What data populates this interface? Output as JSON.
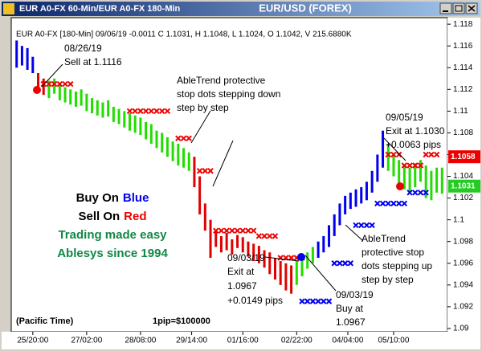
{
  "window": {
    "title": "EUR A0-FX 60-Min/EUR A0-FX 180-Min",
    "symbol": "EUR/USD (FOREX)"
  },
  "chart_data": {
    "type": "range_bar",
    "info": "EUR A0-FX [180-Min] 09/06/19 -0.0011 C 1.1031, H 1.1048, L 1.1024, O 1.1042, V 215.6880K",
    "xlim": [
      -1,
      80
    ],
    "xticks": [
      {
        "value": 3,
        "label": "25/20:00"
      },
      {
        "value": 13,
        "label": "27/02:00"
      },
      {
        "value": 23,
        "label": "28/08:00"
      },
      {
        "value": 32.5,
        "label": "29/14:00"
      },
      {
        "value": 42,
        "label": "01/16:00"
      },
      {
        "value": 52,
        "label": "02/22:00"
      },
      {
        "value": 61.5,
        "label": "04/04:00"
      },
      {
        "value": 70,
        "label": "05/10:00"
      }
    ],
    "ylim": [
      1.0897,
      1.1186
    ],
    "yticks": [
      1.09,
      1.092,
      1.094,
      1.096,
      1.098,
      1.1,
      1.102,
      1.104,
      1.106,
      1.108,
      1.11,
      1.112,
      1.114,
      1.116,
      1.118
    ],
    "high": [
      1.1165,
      1.116,
      1.1158,
      1.115,
      1.1135,
      1.113,
      1.1128,
      1.113,
      1.1125,
      1.1122,
      1.112,
      1.1118,
      1.112,
      1.1116,
      1.1112,
      1.111,
      1.1108,
      1.111,
      1.1104,
      1.1102,
      1.11,
      1.1098,
      1.1096,
      1.1094,
      1.109,
      1.1088,
      1.1082,
      1.108,
      1.1076,
      1.1072,
      1.107,
      1.1066,
      1.1062,
      1.1058,
      1.104,
      1.1015,
      1.1,
      1.099,
      1.0985,
      1.0988,
      1.0982,
      1.0986,
      1.0984,
      1.098,
      1.0978,
      1.0976,
      1.0972,
      1.097,
      1.0965,
      1.0962,
      1.096,
      1.0958,
      1.0962,
      1.0966,
      1.097,
      1.0975,
      1.098,
      1.0985,
      1.0995,
      1.1005,
      1.1015,
      1.1022,
      1.1025,
      1.1028,
      1.103,
      1.1035,
      1.1045,
      1.106,
      1.1082,
      1.107,
      1.106,
      1.1055,
      1.105,
      1.1048,
      1.1052,
      1.1055,
      1.105,
      1.1045,
      1.1048,
      1.1048
    ],
    "low": [
      1.114,
      1.1142,
      1.1138,
      1.1135,
      1.1118,
      1.1115,
      1.1112,
      1.1116,
      1.111,
      1.1108,
      1.1106,
      1.1104,
      1.1105,
      1.11,
      1.1098,
      1.1096,
      1.1094,
      1.1095,
      1.109,
      1.1088,
      1.1085,
      1.1082,
      1.108,
      1.1078,
      1.1074,
      1.107,
      1.1066,
      1.1062,
      1.1058,
      1.1054,
      1.105,
      1.1048,
      1.1045,
      1.103,
      1.1005,
      1.099,
      1.0965,
      1.0975,
      1.097,
      1.0972,
      1.0968,
      1.0974,
      1.097,
      1.0966,
      1.0962,
      1.096,
      1.0956,
      1.095,
      1.0945,
      1.094,
      1.0935,
      1.0932,
      1.094,
      1.0948,
      1.0955,
      1.096,
      1.0965,
      1.097,
      1.0975,
      1.0985,
      1.0995,
      1.1005,
      1.101,
      1.1012,
      1.1015,
      1.1018,
      1.1025,
      1.1035,
      1.1048,
      1.1045,
      1.104,
      1.103,
      1.1028,
      1.1025,
      1.103,
      1.1035,
      1.102,
      1.1018,
      1.1025,
      1.1024
    ],
    "bar_colors": [
      "#0000ee",
      "#0000ee",
      "#0000ee",
      "#0000ee",
      "#e00000",
      "#e00000",
      "#22dd00",
      "#22dd00",
      "#22dd00",
      "#22dd00",
      "#22dd00",
      "#22dd00",
      "#22dd00",
      "#22dd00",
      "#22dd00",
      "#22dd00",
      "#22dd00",
      "#22dd00",
      "#22dd00",
      "#22dd00",
      "#22dd00",
      "#22dd00",
      "#22dd00",
      "#22dd00",
      "#22dd00",
      "#22dd00",
      "#22dd00",
      "#22dd00",
      "#22dd00",
      "#22dd00",
      "#22dd00",
      "#22dd00",
      "#22dd00",
      "#e00000",
      "#e00000",
      "#e00000",
      "#e00000",
      "#e00000",
      "#e00000",
      "#e00000",
      "#e00000",
      "#e00000",
      "#e00000",
      "#e00000",
      "#e00000",
      "#e00000",
      "#e00000",
      "#e00000",
      "#e00000",
      "#e00000",
      "#e00000",
      "#e00000",
      "#22dd00",
      "#22dd00",
      "#22dd00",
      "#22dd00",
      "#0000ee",
      "#0000ee",
      "#0000ee",
      "#0000ee",
      "#0000ee",
      "#0000ee",
      "#0000ee",
      "#0000ee",
      "#0000ee",
      "#0000ee",
      "#0000ee",
      "#0000ee",
      "#0000ee",
      "#22dd00",
      "#22dd00",
      "#22dd00",
      "#22dd00",
      "#22dd00",
      "#22dd00",
      "#22dd00",
      "#22dd00",
      "#22dd00",
      "#22dd00",
      "#22dd00"
    ],
    "red_stop_color": "#ee0000",
    "red_stops": [
      null,
      null,
      null,
      null,
      null,
      1.1125,
      1.1125,
      1.1125,
      1.1125,
      1.1125,
      1.1125,
      null,
      null,
      null,
      null,
      null,
      null,
      null,
      null,
      null,
      null,
      1.11,
      1.11,
      1.11,
      1.11,
      1.11,
      1.11,
      1.11,
      1.11,
      null,
      1.1075,
      1.1075,
      1.1075,
      null,
      1.1045,
      1.1045,
      1.1045,
      1.099,
      1.099,
      1.099,
      1.099,
      1.099,
      1.099,
      1.099,
      1.099,
      1.0985,
      1.0985,
      1.0985,
      1.0985,
      1.0965,
      1.0965,
      1.0965,
      1.0965,
      1.0965,
      null,
      null,
      null,
      null,
      null,
      null,
      null,
      null,
      null,
      null,
      null,
      null,
      null,
      null,
      null,
      1.106,
      1.106,
      1.106,
      1.105,
      1.105,
      1.105,
      1.105,
      1.106,
      1.106,
      1.106,
      null
    ],
    "blue_stop_color": "#0000ee",
    "blue_stops": [
      null,
      null,
      null,
      null,
      null,
      null,
      null,
      null,
      null,
      null,
      null,
      null,
      null,
      null,
      null,
      null,
      null,
      null,
      null,
      null,
      null,
      null,
      null,
      null,
      null,
      null,
      null,
      null,
      null,
      null,
      null,
      null,
      null,
      null,
      null,
      null,
      null,
      null,
      null,
      null,
      null,
      null,
      null,
      null,
      null,
      null,
      null,
      null,
      null,
      null,
      null,
      null,
      null,
      1.0925,
      1.0925,
      1.0925,
      1.0925,
      1.0925,
      1.0925,
      1.096,
      1.096,
      1.096,
      1.096,
      1.0995,
      1.0995,
      1.0995,
      1.0995,
      1.1015,
      1.1015,
      1.1015,
      1.1015,
      1.1015,
      1.1015,
      1.1025,
      1.1025,
      1.1025,
      1.1025,
      null,
      null,
      null
    ],
    "price_tags": [
      {
        "value": 1.1058,
        "color": "#ee0000"
      },
      {
        "value": 1.1031,
        "color": "#22cc22"
      }
    ],
    "annotations": {
      "sell": [
        "08/26/19",
        "Sell at 1.1116"
      ],
      "stop_down": [
        "AbleTrend protective",
        "stop dots stepping down",
        "step by step"
      ],
      "exit2": [
        "09/05/19",
        "Exit at 1.1030",
        "+0.0063 pips"
      ],
      "stop_up": [
        "AbleTrend",
        "protective stop",
        "dots stepping up",
        "step by step"
      ],
      "exit1": [
        "09/03/19",
        "Exit at",
        "1.0967",
        "+0.0149 pips"
      ],
      "buy": [
        "09/03/19",
        "Buy at",
        "1.0967"
      ],
      "timezone": "(Pacific Time)",
      "pip": "1pip=$100000"
    },
    "slogan": {
      "buy": [
        "Buy On",
        "Blue"
      ],
      "sell": [
        "Sell On",
        "Red"
      ],
      "line1": "Trading made easy",
      "line2": "Ablesys since 1994"
    }
  }
}
